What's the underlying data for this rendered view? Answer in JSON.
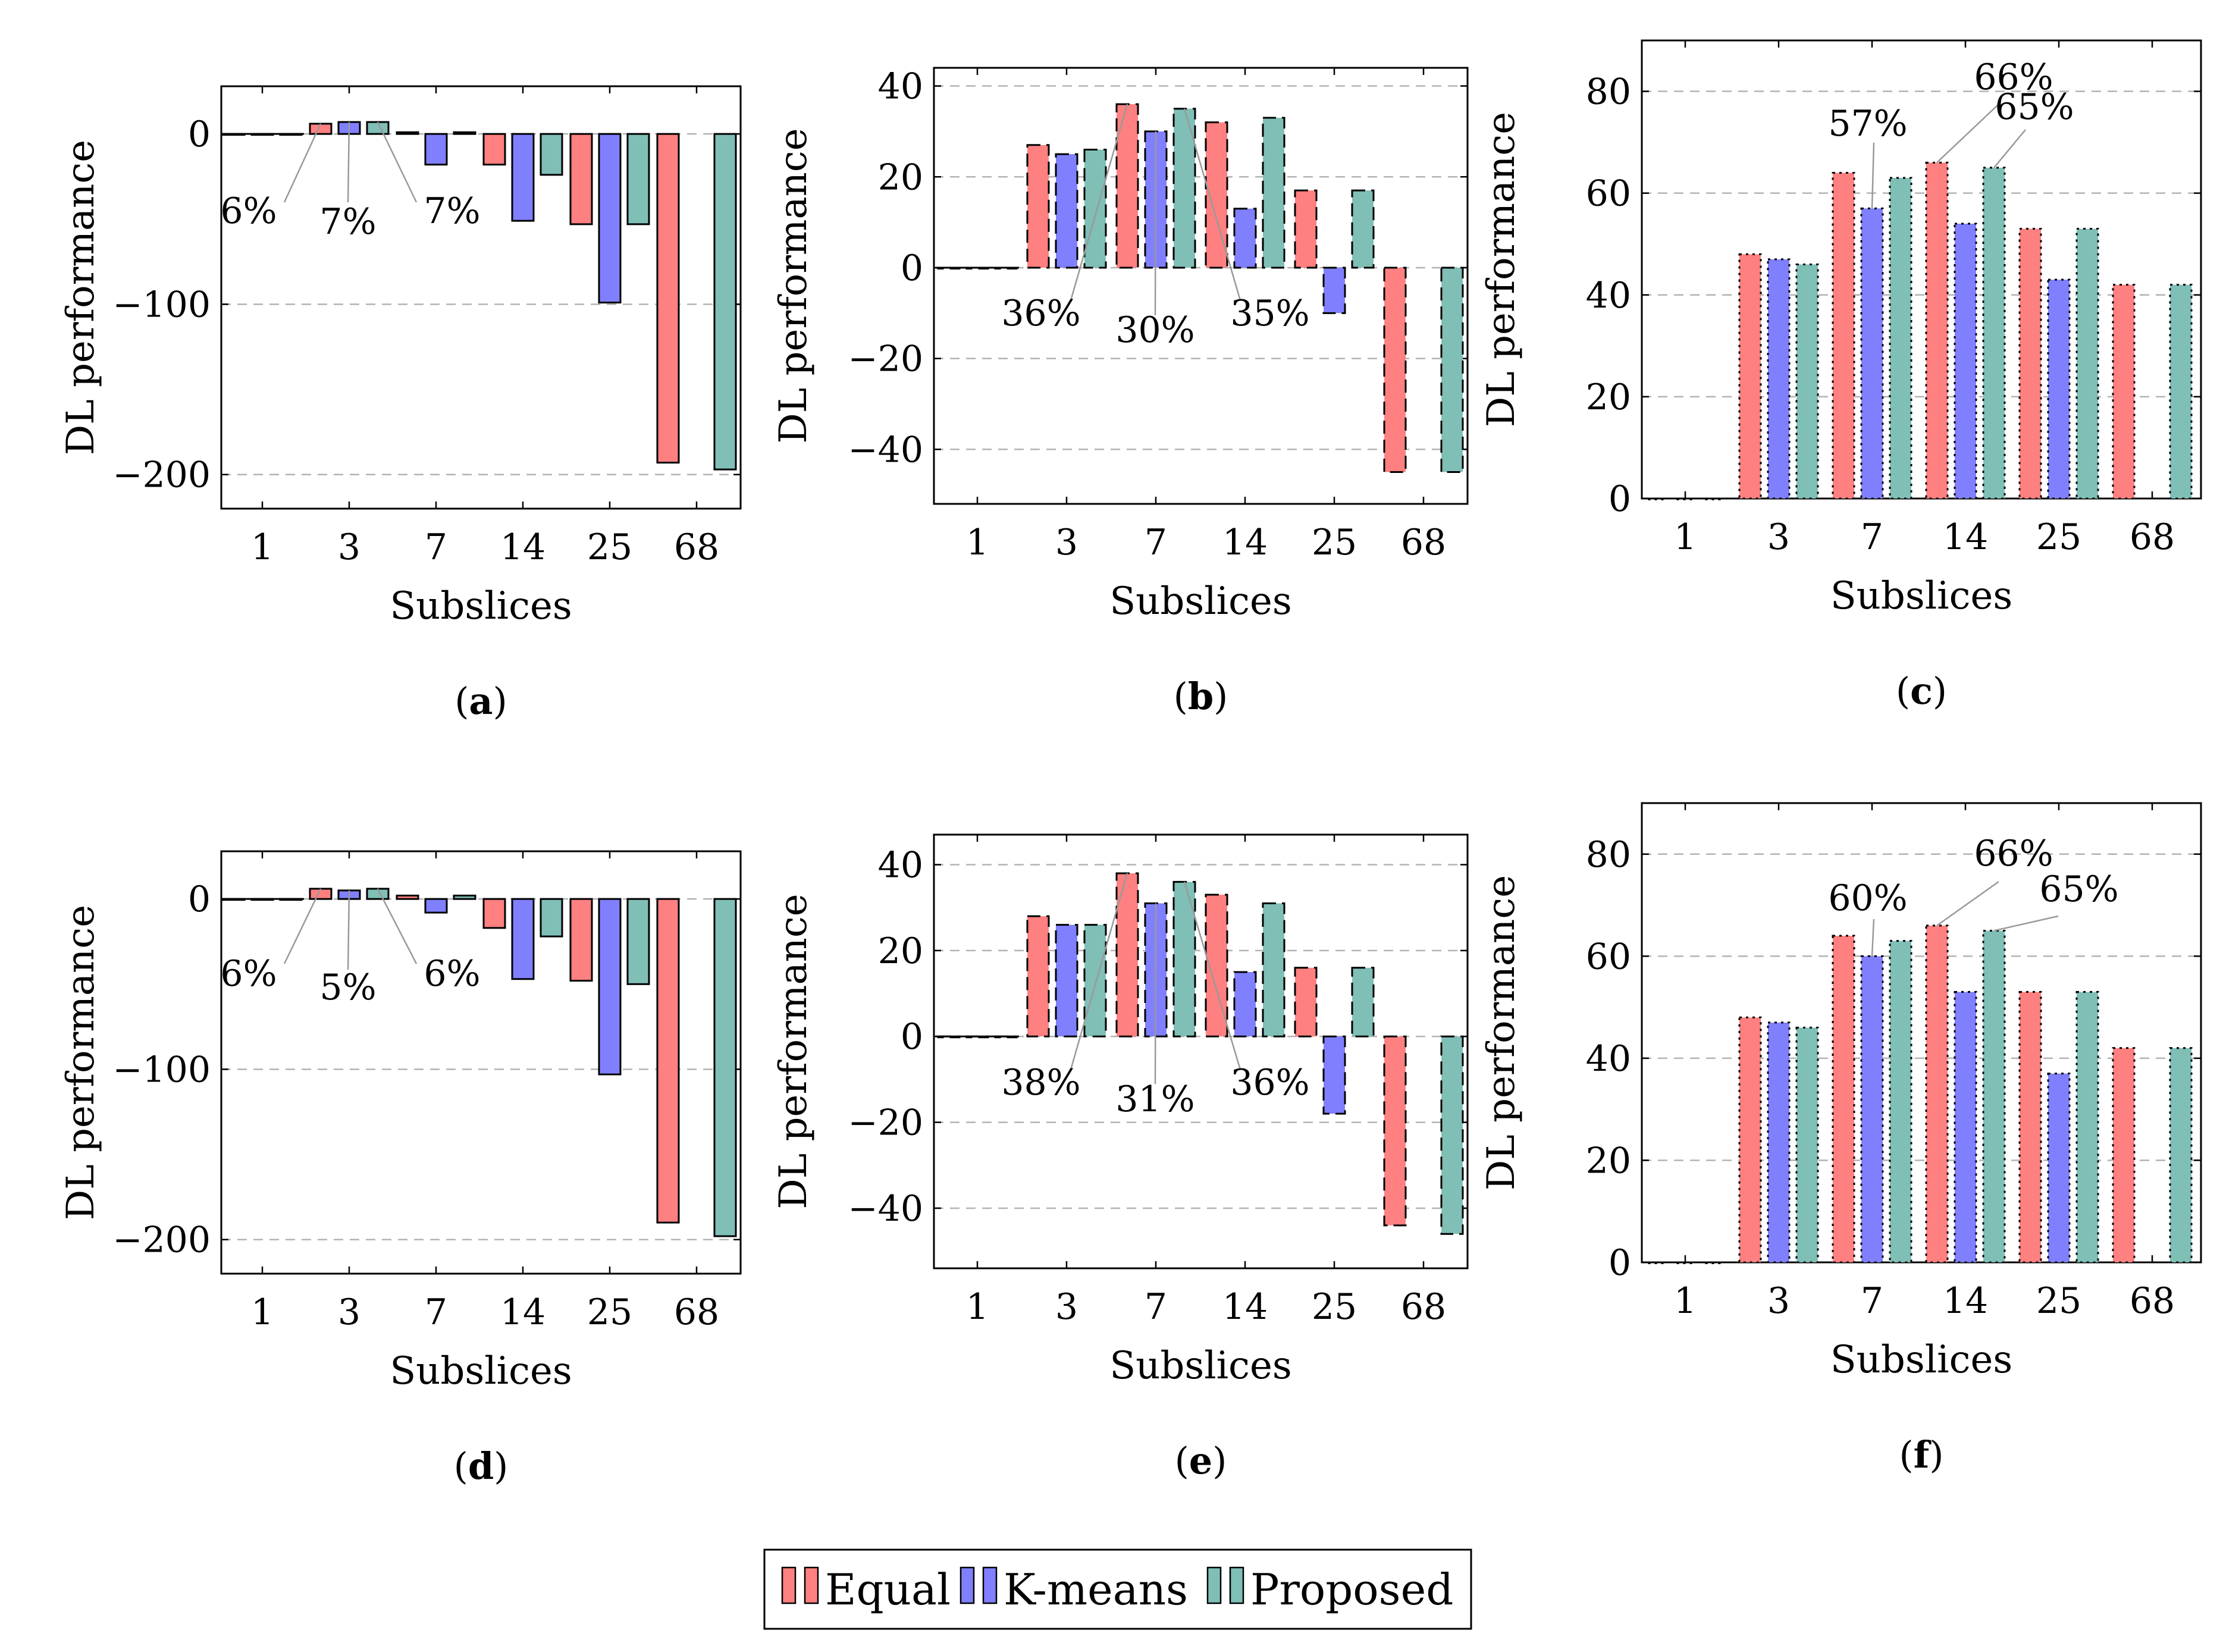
{
  "legend": {
    "items": [
      {
        "name": "Equal",
        "color": "#ff8080",
        "border_color": "#ff0000"
      },
      {
        "name": "K-means",
        "color": "#8080ff",
        "border_color": "#0000ff"
      },
      {
        "name": "Proposed",
        "color": "#7fbfb6",
        "border_color": "#008080"
      }
    ]
  },
  "chart_data": [
    {
      "id": "a",
      "caption_open": "(",
      "caption_letter": "a",
      "caption_close": ")",
      "type": "bar",
      "bar_style": "solid",
      "xlabel": "Subslices",
      "ylabel": "DL performance",
      "ylim": [
        -220,
        28
      ],
      "yticks": [
        0,
        -100,
        -200
      ],
      "ytick_labels": [
        "0",
        "−100",
        "−200"
      ],
      "categories": [
        "1",
        "3",
        "7",
        "14",
        "25",
        "68"
      ],
      "series": [
        {
          "name": "Equal",
          "values": [
            0,
            6,
            1,
            -18,
            -53,
            -193
          ]
        },
        {
          "name": "K-means",
          "values": [
            0,
            7,
            -18,
            -51,
            -99,
            null
          ]
        },
        {
          "name": "Proposed",
          "values": [
            0,
            7,
            1,
            -24,
            -53,
            -197
          ]
        }
      ],
      "annotations": [
        {
          "text": "6%",
          "category": 1,
          "series": 0
        },
        {
          "text": "7%",
          "category": 1,
          "series": 1
        },
        {
          "text": "7%",
          "category": 1,
          "series": 2
        }
      ]
    },
    {
      "id": "b",
      "caption_open": "(",
      "caption_letter": "b",
      "caption_close": ")",
      "type": "bar",
      "bar_style": "dashed",
      "xlabel": "Subslices",
      "ylabel": "DL performance",
      "ylim": [
        -52,
        44
      ],
      "yticks": [
        40,
        20,
        0,
        -20,
        -40
      ],
      "ytick_labels": [
        "40",
        "20",
        "0",
        "−20",
        "−40"
      ],
      "categories": [
        "1",
        "3",
        "7",
        "14",
        "25",
        "68"
      ],
      "series": [
        {
          "name": "Equal",
          "values": [
            0,
            27,
            36,
            32,
            17,
            -45
          ]
        },
        {
          "name": "K-means",
          "values": [
            0,
            25,
            30,
            13,
            -10,
            null
          ]
        },
        {
          "name": "Proposed",
          "values": [
            0,
            26,
            35,
            33,
            17,
            -45
          ]
        }
      ],
      "annotations": [
        {
          "text": "36%",
          "category": 2,
          "series": 0
        },
        {
          "text": "30%",
          "category": 2,
          "series": 1
        },
        {
          "text": "35%",
          "category": 2,
          "series": 2
        }
      ]
    },
    {
      "id": "c",
      "caption_open": "(",
      "caption_letter": "c",
      "caption_close": ")",
      "type": "bar",
      "bar_style": "dotted",
      "xlabel": "Subslices",
      "ylabel": "DL performance",
      "ylim": [
        0,
        90
      ],
      "yticks": [
        0,
        20,
        40,
        60,
        80
      ],
      "ytick_labels": [
        "0",
        "20",
        "40",
        "60",
        "80"
      ],
      "categories": [
        "1",
        "3",
        "7",
        "14",
        "25",
        "68"
      ],
      "series": [
        {
          "name": "Equal",
          "values": [
            0,
            48,
            64,
            66,
            53,
            42
          ]
        },
        {
          "name": "K-means",
          "values": [
            0,
            47,
            57,
            54,
            43,
            null
          ]
        },
        {
          "name": "Proposed",
          "values": [
            0,
            46,
            63,
            65,
            53,
            42
          ]
        }
      ],
      "annotations": [
        {
          "text": "66%",
          "category": 3,
          "series": 0
        },
        {
          "text": "57%",
          "category": 2,
          "series": 1
        },
        {
          "text": "65%",
          "category": 3,
          "series": 2
        }
      ]
    },
    {
      "id": "d",
      "caption_open": "(",
      "caption_letter": "d",
      "caption_close": ")",
      "type": "bar",
      "bar_style": "solid",
      "xlabel": "Subslices",
      "ylabel": "DL performance",
      "ylim": [
        -220,
        28
      ],
      "yticks": [
        0,
        -100,
        -200
      ],
      "ytick_labels": [
        "0",
        "−100",
        "−200"
      ],
      "categories": [
        "1",
        "3",
        "7",
        "14",
        "25",
        "68"
      ],
      "series": [
        {
          "name": "Equal",
          "values": [
            0,
            6,
            2,
            -17,
            -48,
            -190
          ]
        },
        {
          "name": "K-means",
          "values": [
            0,
            5,
            -8,
            -47,
            -103,
            null
          ]
        },
        {
          "name": "Proposed",
          "values": [
            0,
            6,
            2,
            -22,
            -50,
            -198
          ]
        }
      ],
      "annotations": [
        {
          "text": "6%",
          "category": 1,
          "series": 0
        },
        {
          "text": "5%",
          "category": 1,
          "series": 1
        },
        {
          "text": "6%",
          "category": 1,
          "series": 2
        }
      ]
    },
    {
      "id": "e",
      "caption_open": "(",
      "caption_letter": "e",
      "caption_close": ")",
      "type": "bar",
      "bar_style": "dashed",
      "xlabel": "Subslices",
      "ylabel": "DL performance",
      "ylim": [
        -54,
        47
      ],
      "yticks": [
        40,
        20,
        0,
        -20,
        -40
      ],
      "ytick_labels": [
        "40",
        "20",
        "0",
        "−20",
        "−40"
      ],
      "categories": [
        "1",
        "3",
        "7",
        "14",
        "25",
        "68"
      ],
      "series": [
        {
          "name": "Equal",
          "values": [
            0,
            28,
            38,
            33,
            16,
            -44
          ]
        },
        {
          "name": "K-means",
          "values": [
            0,
            26,
            31,
            15,
            -18,
            null
          ]
        },
        {
          "name": "Proposed",
          "values": [
            0,
            26,
            36,
            31,
            16,
            -46
          ]
        }
      ],
      "annotations": [
        {
          "text": "38%",
          "category": 2,
          "series": 0
        },
        {
          "text": "31%",
          "category": 2,
          "series": 1
        },
        {
          "text": "36%",
          "category": 2,
          "series": 2
        }
      ]
    },
    {
      "id": "f",
      "caption_open": "(",
      "caption_letter": "f",
      "caption_close": ")",
      "type": "bar",
      "bar_style": "dotted",
      "xlabel": "Subslices",
      "ylabel": "DL performance",
      "ylim": [
        0,
        90
      ],
      "yticks": [
        0,
        20,
        40,
        60,
        80
      ],
      "ytick_labels": [
        "0",
        "20",
        "40",
        "60",
        "80"
      ],
      "categories": [
        "1",
        "3",
        "7",
        "14",
        "25",
        "68"
      ],
      "series": [
        {
          "name": "Equal",
          "values": [
            0,
            48,
            64,
            66,
            53,
            42
          ]
        },
        {
          "name": "K-means",
          "values": [
            0,
            47,
            60,
            53,
            37,
            null
          ]
        },
        {
          "name": "Proposed",
          "values": [
            0,
            46,
            63,
            65,
            53,
            42
          ]
        }
      ],
      "annotations": [
        {
          "text": "66%",
          "category": 3,
          "series": 0
        },
        {
          "text": "60%",
          "category": 2,
          "series": 1
        },
        {
          "text": "65%",
          "category": 3,
          "series": 2
        }
      ]
    }
  ]
}
